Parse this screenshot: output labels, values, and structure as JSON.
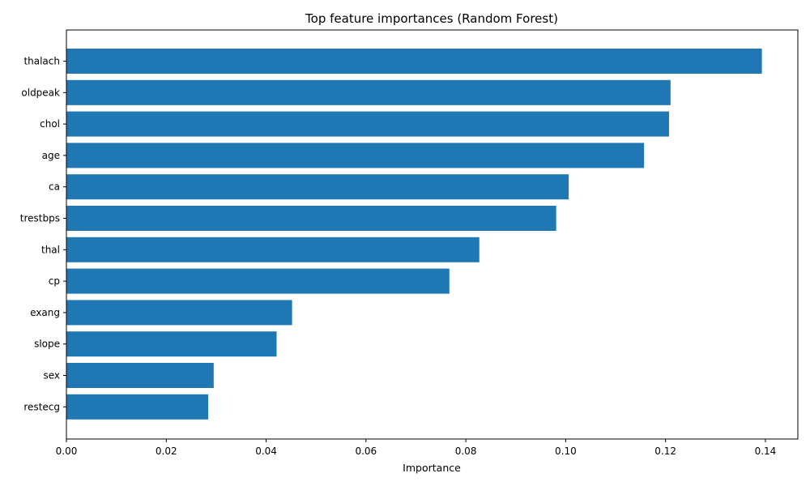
{
  "chart_data": {
    "type": "bar",
    "orientation": "horizontal",
    "title": "Top feature importances (Random Forest)",
    "xlabel": "Importance",
    "ylabel": "",
    "xlim": [
      0,
      0.1465
    ],
    "x_ticks": [
      0.0,
      0.02,
      0.04,
      0.06,
      0.08,
      0.1,
      0.12,
      0.14
    ],
    "x_tick_labels": [
      "0.00",
      "0.02",
      "0.04",
      "0.06",
      "0.08",
      "0.10",
      "0.12",
      "0.14"
    ],
    "grid": false,
    "bar_color": "#1f77b4",
    "categories": [
      "thalach",
      "oldpeak",
      "chol",
      "age",
      "ca",
      "trestbps",
      "thal",
      "cp",
      "exang",
      "slope",
      "sex",
      "restecg"
    ],
    "values": [
      0.1393,
      0.121,
      0.1207,
      0.1157,
      0.1006,
      0.0981,
      0.0827,
      0.0767,
      0.0452,
      0.0421,
      0.0295,
      0.0284
    ]
  }
}
